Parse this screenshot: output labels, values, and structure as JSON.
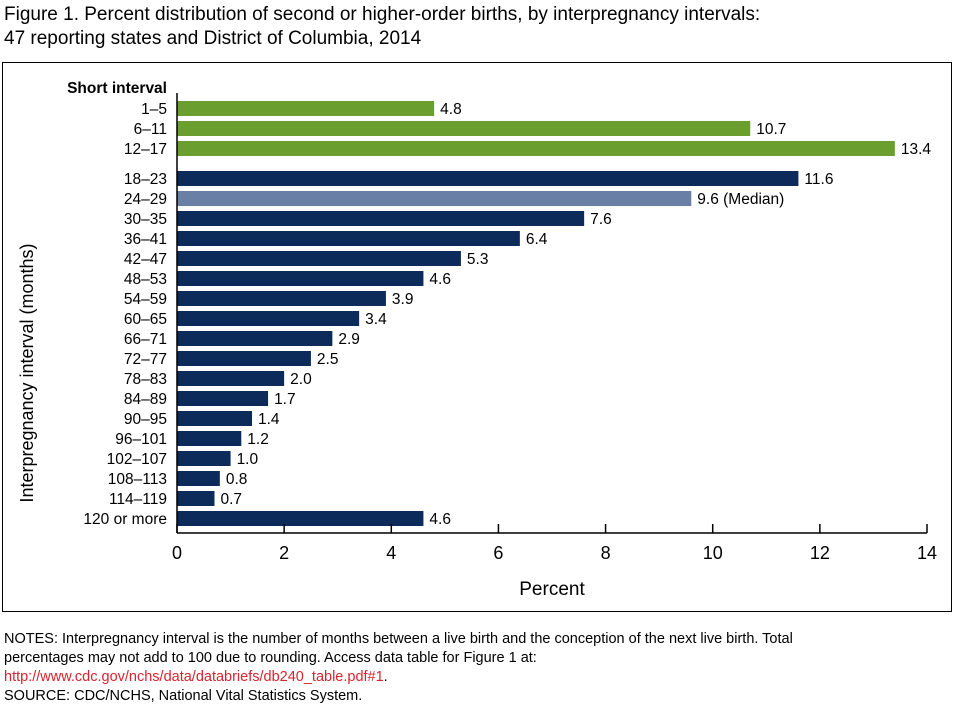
{
  "figure": {
    "title_line1": "Figure 1. Percent distribution of second or higher-order births, by interpregnancy intervals:",
    "title_line2": "47 reporting states and District of Columbia, 2014"
  },
  "chart_data": {
    "type": "bar",
    "orientation": "horizontal",
    "group_label": "Short interval",
    "xlabel": "Percent",
    "ylabel": "Interpregnancy interval (months)",
    "xlim": [
      0,
      14
    ],
    "xticks": [
      0,
      2,
      4,
      6,
      8,
      10,
      12,
      14
    ],
    "grid": false,
    "colors": {
      "short": "#6a9e2f",
      "median": "#6a7fa6",
      "other": "#0d2b5a"
    },
    "categories": [
      "1–5",
      "6–11",
      "12–17",
      "18–23",
      "24–29",
      "30–35",
      "36–41",
      "42–47",
      "48–53",
      "54–59",
      "60–65",
      "66–71",
      "72–77",
      "78–83",
      "84–89",
      "90–95",
      "96–101",
      "102–107",
      "108–113",
      "114–119",
      "120 or more"
    ],
    "values": [
      4.8,
      10.7,
      13.4,
      11.6,
      9.6,
      7.6,
      6.4,
      5.3,
      4.6,
      3.9,
      3.4,
      2.9,
      2.5,
      2.0,
      1.7,
      1.4,
      1.2,
      1.0,
      0.8,
      0.7,
      4.6
    ],
    "value_labels": [
      "4.8",
      "10.7",
      "13.4",
      "11.6",
      "9.6 (Median)",
      "7.6",
      "6.4",
      "5.3",
      "4.6",
      "3.9",
      "3.4",
      "2.9",
      "2.5",
      "2.0",
      "1.7",
      "1.4",
      "1.2",
      "1.0",
      "0.8",
      "0.7",
      "4.6"
    ],
    "bar_groups": [
      "short",
      "short",
      "short",
      "other",
      "median",
      "other",
      "other",
      "other",
      "other",
      "other",
      "other",
      "other",
      "other",
      "other",
      "other",
      "other",
      "other",
      "other",
      "other",
      "other",
      "other"
    ]
  },
  "notes": {
    "line1": "NOTES: Interpregnancy interval is the number of months between a live birth and the conception of the next live birth. Total",
    "line2": "percentages may not add to 100 due to rounding. Access data table for Figure 1 at:",
    "link_text": "http://www.cdc.gov/nchs/data/databriefs/db240_table.pdf#1",
    "link_suffix": ".",
    "source": "SOURCE: CDC/NCHS, National Vital Statistics System."
  }
}
